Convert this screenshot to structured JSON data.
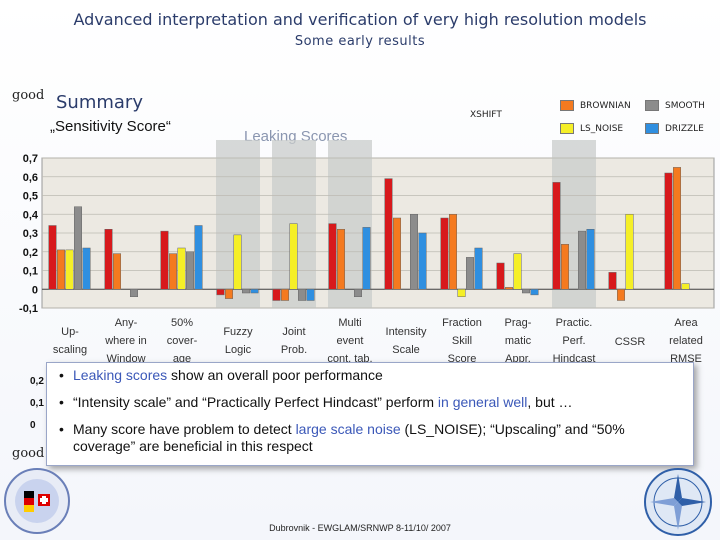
{
  "header": {
    "title": "Advanced interpretation and verification of very high resolution models",
    "subtitle": "Some early results"
  },
  "labels": {
    "good_top": "good",
    "good_bottom": "good",
    "summary": "Summary",
    "sensitivity": "„Sensitivity Score“",
    "leaking": "Leaking Scores",
    "footer": "Dubrovnik - EWGLAM/SRNWP 8-11/10/ 2007"
  },
  "stub_axis": [
    "0,2",
    "0,1",
    "0"
  ],
  "bullets": [
    {
      "parts": [
        {
          "t": "Leaking scores",
          "hl": true
        },
        {
          "t": " show an overall poor performance",
          "hl": false
        }
      ]
    },
    {
      "parts": [
        {
          "t": "“Intensity scale” and “Practically Perfect Hindcast” perform ",
          "hl": false
        },
        {
          "t": "in general well",
          "hl": true
        },
        {
          "t": ", but …",
          "hl": false
        }
      ]
    },
    {
      "parts": [
        {
          "t": "Many score have problem to detect ",
          "hl": false
        },
        {
          "t": "large scale noise",
          "hl": true
        },
        {
          "t": " (LS_NOISE); “Upscaling” and “50% coverage” are beneficial in this respect",
          "hl": false
        }
      ]
    }
  ],
  "colors": {
    "XSHIFT": "#d7191c",
    "BROWNIAN": "#f47a1f",
    "LS_NOISE": "#f5ef27",
    "SMOOTH": "#8c8c8c",
    "DRIZZLE": "#2f8fe0",
    "plot_bg": "#ece9e2",
    "highlight_band": "#c9cccb"
  },
  "chart_data": {
    "type": "bar",
    "title": "„Sensitivity Score“",
    "xlabel": "",
    "ylabel": "",
    "ylim": [
      -0.1,
      0.7
    ],
    "yticks": [
      "-0,1",
      "0",
      "0,1",
      "0,2",
      "0,3",
      "0,4",
      "0,5",
      "0,6",
      "0,7"
    ],
    "grid": true,
    "legend_placement": "top-right",
    "categories": [
      [
        "Up-",
        "scaling"
      ],
      [
        "Any-",
        "where in",
        "Window"
      ],
      [
        "50%",
        "cover-",
        "age"
      ],
      [
        "Fuzzy",
        "Logic"
      ],
      [
        "Joint",
        "Prob."
      ],
      [
        "Multi",
        "event",
        "cont. tab."
      ],
      [
        "Intensity",
        "Scale"
      ],
      [
        "Fraction",
        "Skill",
        "Score"
      ],
      [
        "Prag-",
        "matic",
        "Appr."
      ],
      [
        "Practic.",
        "Perf.",
        "Hindcast"
      ],
      [
        "CSSR"
      ],
      [
        "Area",
        "related",
        "RMSE"
      ]
    ],
    "leaking_categories": [
      3,
      4,
      5,
      9
    ],
    "series": [
      {
        "name": "XSHIFT",
        "values": [
          0.34,
          0.32,
          0.31,
          -0.03,
          -0.06,
          0.35,
          0.59,
          0.38,
          0.14,
          0.57,
          0.09,
          0.62
        ]
      },
      {
        "name": "BROWNIAN",
        "values": [
          0.21,
          0.19,
          0.19,
          -0.05,
          -0.06,
          0.32,
          0.38,
          0.4,
          0.01,
          0.24,
          -0.06,
          0.65
        ]
      },
      {
        "name": "LS_NOISE",
        "values": [
          0.21,
          0.0,
          0.22,
          0.29,
          0.35,
          0.0,
          0.0,
          -0.04,
          0.19,
          0.0,
          0.4,
          0.03
        ]
      },
      {
        "name": "SMOOTH",
        "values": [
          0.44,
          -0.04,
          0.2,
          -0.02,
          -0.06,
          -0.04,
          0.4,
          0.17,
          -0.02,
          0.31,
          0.0,
          0.0
        ]
      },
      {
        "name": "DRIZZLE",
        "values": [
          0.22,
          0.0,
          0.34,
          -0.02,
          -0.06,
          0.33,
          0.3,
          0.22,
          -0.03,
          0.32,
          0.0,
          0.0
        ]
      }
    ]
  }
}
